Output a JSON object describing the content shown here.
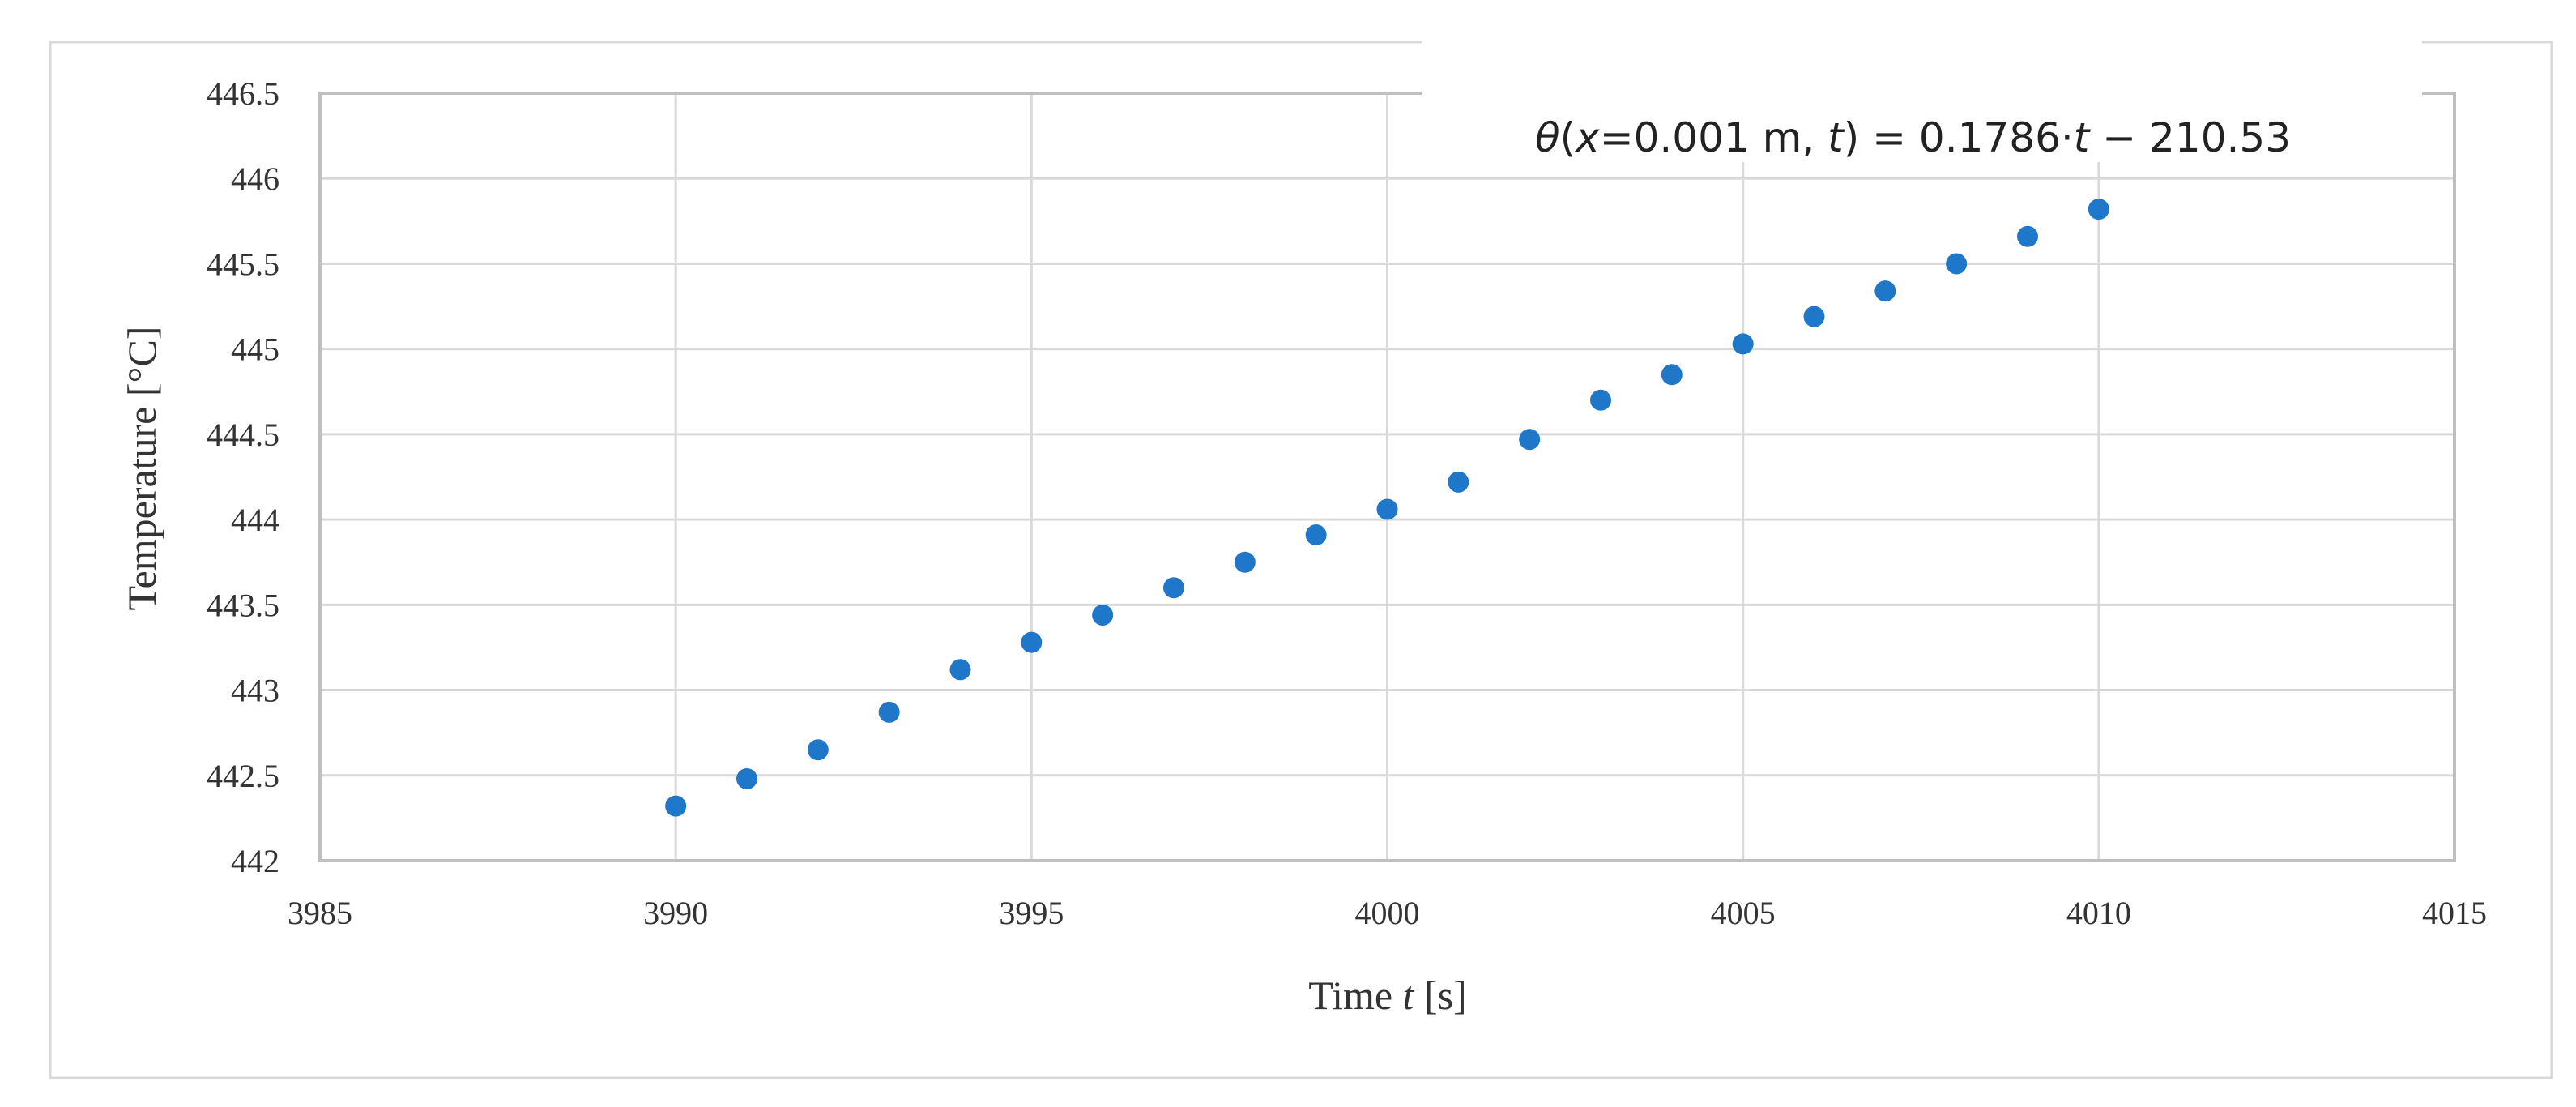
{
  "chart_data": {
    "type": "scatter",
    "xlabel": {
      "prefix": "Time ",
      "var": "t",
      "suffix": " [s]"
    },
    "ylabel": "Temperature [°C]",
    "xlim": [
      3985,
      4015
    ],
    "ylim": [
      442,
      446.5
    ],
    "x_ticks": [
      "3985",
      "3990",
      "3995",
      "4000",
      "4005",
      "4010",
      "4015"
    ],
    "y_ticks": [
      "442",
      "442.5",
      "443",
      "443.5",
      "444",
      "444.5",
      "445",
      "445.5",
      "446",
      "446.5"
    ],
    "grid": true,
    "legend": "none",
    "point_color": "#1F77C9",
    "trendline_color": "#A6A6A6",
    "series": [
      {
        "x": [
          3990,
          3991,
          3992,
          3993,
          3994,
          3995,
          3996,
          3997,
          3998,
          3999,
          4000,
          4001,
          4002,
          4003,
          4004,
          4005,
          4006,
          4007,
          4008,
          4009,
          4010
        ],
        "y": [
          442.32,
          442.48,
          442.65,
          442.87,
          443.12,
          443.28,
          443.44,
          443.6,
          443.75,
          443.91,
          444.06,
          444.22,
          444.47,
          444.7,
          444.85,
          445.03,
          445.19,
          445.34,
          445.5,
          445.66,
          445.82
        ]
      }
    ],
    "trendline": {
      "slope": 0.1786,
      "intercept": -210.53,
      "x_range": [
        3990,
        4010
      ],
      "equation": {
        "theta": "θ",
        "open": "(",
        "x_var": "x",
        "x_value": "=0.001 m, ",
        "t_var": "t",
        "close": ") = 0.1786·",
        "t_var2": "t",
        "rest": " − 210.53"
      }
    }
  }
}
